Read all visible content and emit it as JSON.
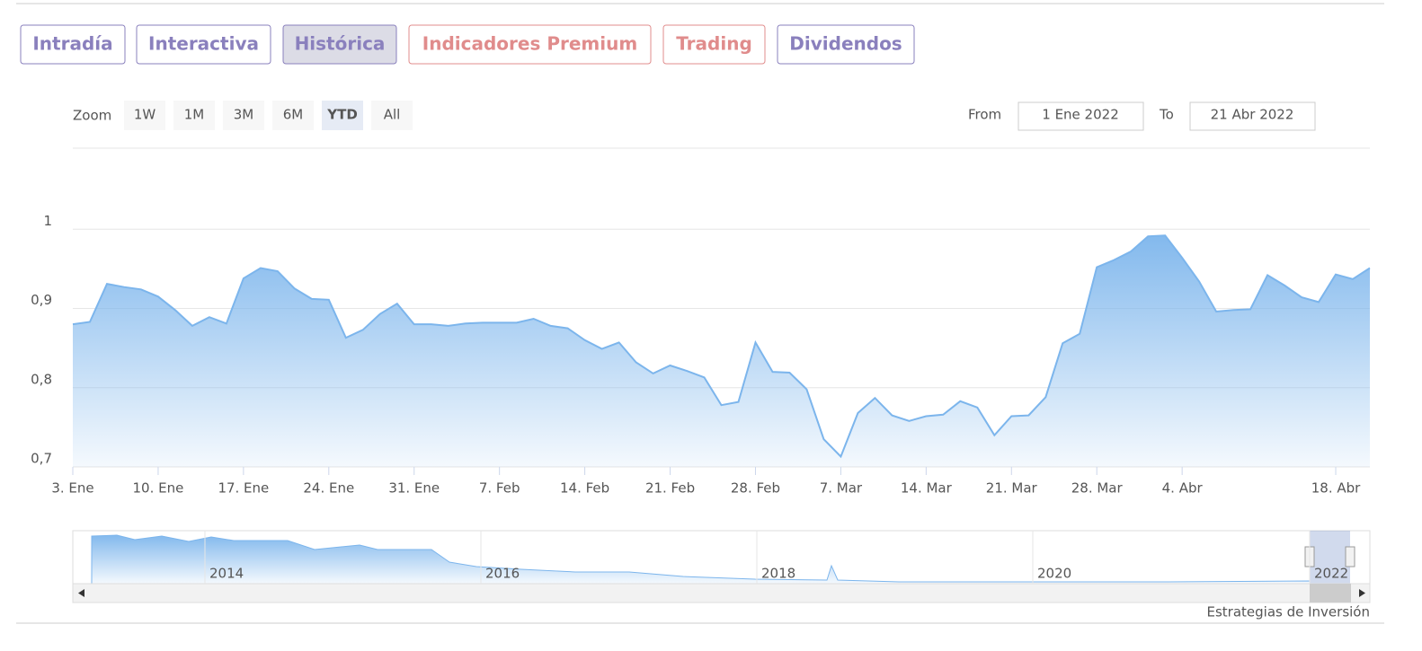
{
  "tabs": [
    "Intradía",
    "Interactiva",
    "Histórica",
    "Indicadores Premium",
    "Trading",
    "Dividendos"
  ],
  "zoom": {
    "label": "Zoom",
    "buttons": [
      "1W",
      "1M",
      "3M",
      "6M",
      "YTD",
      "All"
    ],
    "selected": "YTD"
  },
  "range": {
    "from_label": "From",
    "from": "1 Ene 2022",
    "to_label": "To",
    "to": "21 Abr 2022"
  },
  "chart_data": {
    "type": "area",
    "color": "#7cb5ec",
    "x": [
      0,
      1,
      2,
      3,
      4,
      5,
      6,
      7,
      8,
      9,
      10,
      11,
      12,
      13,
      14,
      15,
      16,
      17,
      18,
      19,
      20,
      21,
      22,
      23,
      24,
      25,
      26,
      27,
      28,
      29,
      30,
      31,
      32,
      33,
      34,
      35,
      36,
      37,
      38,
      39,
      40,
      41,
      42,
      43,
      44,
      45,
      46,
      47,
      48,
      49,
      50,
      51,
      52,
      53,
      54,
      55,
      56,
      57,
      58,
      59,
      60,
      61,
      62,
      63,
      64,
      65,
      66,
      67,
      68,
      69,
      70,
      71,
      72,
      73,
      74,
      75,
      76
    ],
    "values": [
      0.88,
      0.883,
      0.931,
      0.927,
      0.924,
      0.915,
      0.898,
      0.878,
      0.889,
      0.881,
      0.938,
      0.951,
      0.947,
      0.925,
      0.912,
      0.911,
      0.863,
      0.873,
      0.893,
      0.906,
      0.88,
      0.88,
      0.878,
      0.881,
      0.882,
      0.882,
      0.882,
      0.887,
      0.878,
      0.875,
      0.86,
      0.849,
      0.857,
      0.832,
      0.818,
      0.828,
      0.821,
      0.813,
      0.778,
      0.782,
      0.857,
      0.82,
      0.819,
      0.798,
      0.735,
      0.713,
      0.768,
      0.787,
      0.765,
      0.758,
      0.764,
      0.766,
      0.783,
      0.775,
      0.74,
      0.764,
      0.765,
      0.788,
      0.856,
      0.868,
      0.952,
      0.961,
      0.972,
      0.991,
      0.992,
      0.964,
      0.934,
      0.896,
      0.898,
      0.899,
      0.942,
      0.929,
      0.914,
      0.908,
      0.943,
      0.937,
      0.951
    ],
    "xlim": [
      0,
      76
    ],
    "xticks": [
      {
        "value": 0,
        "label": "3. Ene"
      },
      {
        "value": 5,
        "label": "10. Ene"
      },
      {
        "value": 10,
        "label": "17. Ene"
      },
      {
        "value": 15,
        "label": "24. Ene"
      },
      {
        "value": 20,
        "label": "31. Ene"
      },
      {
        "value": 25,
        "label": "7. Feb"
      },
      {
        "value": 30,
        "label": "14. Feb"
      },
      {
        "value": 35,
        "label": "21. Feb"
      },
      {
        "value": 40,
        "label": "28. Feb"
      },
      {
        "value": 45,
        "label": "7. Mar"
      },
      {
        "value": 50,
        "label": "14. Mar"
      },
      {
        "value": 55,
        "label": "21. Mar"
      },
      {
        "value": 60,
        "label": "28. Mar"
      },
      {
        "value": 65,
        "label": "4. Abr"
      },
      {
        "value": 74,
        "label": "18. Abr"
      }
    ],
    "ylim": [
      0.7,
      1.1
    ],
    "yticks": [
      {
        "value": 0.7,
        "label": "0,7"
      },
      {
        "value": 0.8,
        "label": "0,8"
      },
      {
        "value": 0.9,
        "label": "0,9"
      },
      1
    ],
    "grid": true
  },
  "navigator": {
    "labels": [
      "2014",
      "2016",
      "2018",
      "2020",
      "2022"
    ]
  },
  "credits": "Estrategias de Inversión"
}
